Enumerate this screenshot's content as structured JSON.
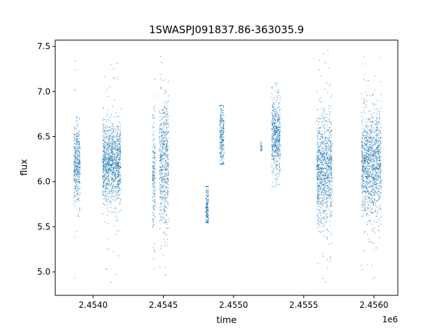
{
  "chart_data": {
    "type": "scatter",
    "title": "1SWASPJ091837.86-363035.9",
    "xlabel": "time",
    "ylabel": "flux",
    "x_offset_label": "1e6",
    "xlim": [
      2453730,
      2456170
    ],
    "ylim": [
      4.74,
      7.57
    ],
    "x_ticks": [
      2454000,
      2454500,
      2455000,
      2455500,
      2456000
    ],
    "x_tick_labels": [
      "2.4540",
      "2.4545",
      "2.4550",
      "2.4555",
      "2.4560"
    ],
    "y_ticks": [
      5.0,
      5.5,
      6.0,
      6.5,
      7.0,
      7.5
    ],
    "y_tick_labels": [
      "5.0",
      "5.5",
      "6.0",
      "6.5",
      "7.0",
      "7.5"
    ],
    "grid": false,
    "marker_color": "#1f77b4",
    "point_clusters": [
      {
        "x_range": [
          2453860,
          2453905
        ],
        "y_center": 6.2,
        "y_spread": 0.22,
        "y_min": 4.85,
        "y_max": 7.42
      },
      {
        "x_range": [
          2454065,
          2454195
        ],
        "y_center": 6.2,
        "y_spread": 0.22,
        "y_min": 4.88,
        "y_max": 7.38
      },
      {
        "x_range": [
          2454420,
          2454440
        ],
        "y_center": 6.15,
        "y_spread": 0.32,
        "y_min": 5.0,
        "y_max": 7.2
      },
      {
        "x_range": [
          2454470,
          2454535
        ],
        "y_center": 6.2,
        "y_spread": 0.34,
        "y_min": 4.93,
        "y_max": 7.45
      },
      {
        "x_range": [
          2454800,
          2454820
        ],
        "y_center": 5.7,
        "y_spread": 0.15,
        "y_min": 5.55,
        "y_max": 5.95
      },
      {
        "x_range": [
          2454900,
          2454930
        ],
        "y_center": 6.5,
        "y_spread": 0.2,
        "y_min": 6.2,
        "y_max": 6.85
      },
      {
        "x_range": [
          2455190,
          2455200
        ],
        "y_center": 6.38,
        "y_spread": 0.04,
        "y_min": 6.35,
        "y_max": 6.45
      },
      {
        "x_range": [
          2455270,
          2455330
        ],
        "y_center": 6.5,
        "y_spread": 0.22,
        "y_min": 5.95,
        "y_max": 7.1
      },
      {
        "x_range": [
          2455590,
          2455700
        ],
        "y_center": 6.15,
        "y_spread": 0.3,
        "y_min": 4.85,
        "y_max": 7.5
      },
      {
        "x_range": [
          2455910,
          2456050
        ],
        "y_center": 6.2,
        "y_spread": 0.28,
        "y_min": 4.9,
        "y_max": 7.45
      }
    ]
  }
}
